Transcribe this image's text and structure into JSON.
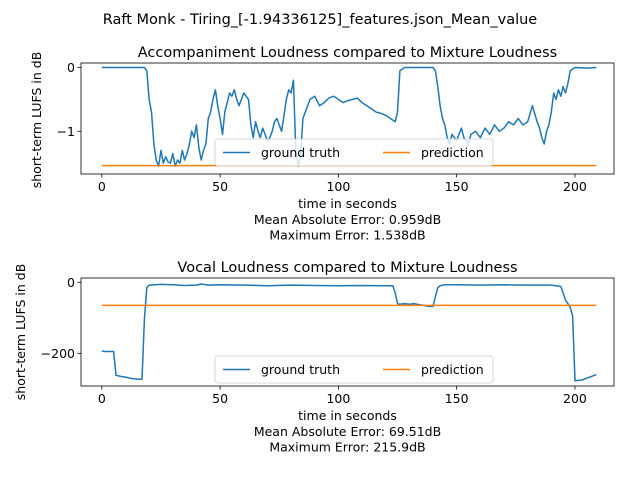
{
  "figure": {
    "suptitle": "Raft Monk - Tiring_[-1.94336125]_features.json_Mean_value"
  },
  "chart_data": [
    {
      "type": "line",
      "title": "Accompaniment Loudness compared to Mixture Loudness",
      "xlabel": "time in seconds",
      "ylabel": "short-term LUFS in dB",
      "footer": [
        "Mean Absolute Error: 0.959dB",
        "Maximum Error: 1.538dB"
      ],
      "xlim": [
        -8.8,
        216.5
      ],
      "ylim": [
        -1.67,
        0.07
      ],
      "xticks": [
        0,
        50,
        100,
        150,
        200
      ],
      "yticks": [
        0,
        -1
      ],
      "legend": {
        "placement": "bottom-center",
        "ncol": 2
      },
      "grid": false,
      "series": [
        {
          "name": "ground truth",
          "color": "#1f77b4",
          "x": [
            0,
            5,
            10,
            15,
            18,
            19,
            20,
            21,
            22,
            23,
            24,
            25,
            26,
            27,
            28,
            29,
            30,
            31,
            32,
            33,
            34,
            35,
            36,
            37,
            38,
            39,
            40,
            41,
            42,
            43,
            44,
            45,
            46,
            47,
            48,
            49,
            50,
            51,
            52,
            53,
            54,
            55,
            56,
            57,
            58,
            59,
            60,
            61,
            62,
            63,
            64,
            65,
            66,
            67,
            68,
            69,
            70,
            71,
            72,
            73,
            74,
            75,
            76,
            77,
            78,
            79,
            80,
            81,
            82,
            83,
            84,
            85,
            86,
            88,
            90,
            92,
            94,
            96,
            98,
            100,
            102,
            104,
            106,
            108,
            110,
            112,
            114,
            116,
            118,
            120,
            122,
            124,
            125,
            126,
            128,
            130,
            132,
            135,
            138,
            140,
            141,
            142,
            143,
            144,
            145,
            146,
            147,
            148,
            149,
            150,
            151,
            152,
            153,
            154,
            155,
            156,
            158,
            160,
            162,
            164,
            166,
            168,
            170,
            172,
            174,
            176,
            178,
            180,
            182,
            184,
            185,
            186,
            187,
            188,
            189,
            190,
            191,
            192,
            193,
            194,
            195,
            196,
            197,
            198,
            200,
            205,
            209
          ],
          "y": [
            0,
            0,
            0,
            0,
            0,
            -0.05,
            -0.5,
            -0.7,
            -1.2,
            -1.45,
            -1.55,
            -1.3,
            -1.5,
            -1.4,
            -1.48,
            -1.5,
            -1.35,
            -1.55,
            -1.45,
            -1.5,
            -1.3,
            -1.45,
            -1.35,
            -1.2,
            -1.0,
            -1.1,
            -0.9,
            -1.25,
            -1.45,
            -1.3,
            -1.2,
            -0.8,
            -0.7,
            -0.5,
            -0.35,
            -0.6,
            -0.8,
            -1.05,
            -0.7,
            -0.55,
            -0.4,
            -0.45,
            -0.35,
            -0.5,
            -0.6,
            -0.5,
            -0.4,
            -0.45,
            -0.5,
            -0.9,
            -1.1,
            -0.85,
            -1.0,
            -1.1,
            -0.95,
            -1.05,
            -1.15,
            -1.1,
            -1.0,
            -0.85,
            -0.8,
            -0.9,
            -1.0,
            -0.75,
            -0.5,
            -0.35,
            -0.4,
            -0.2,
            -1.3,
            -1.55,
            -1.4,
            -0.8,
            -0.7,
            -0.5,
            -0.45,
            -0.6,
            -0.55,
            -0.48,
            -0.45,
            -0.5,
            -0.55,
            -0.52,
            -0.5,
            -0.48,
            -0.55,
            -0.6,
            -0.65,
            -0.7,
            -0.72,
            -0.75,
            -0.8,
            -0.85,
            -0.7,
            -0.05,
            0,
            0,
            0,
            0,
            0,
            0,
            -0.05,
            -0.3,
            -0.6,
            -0.8,
            -0.9,
            -1.1,
            -1.2,
            -1.05,
            -1.1,
            -1.15,
            -1.05,
            -0.95,
            -1.1,
            -1.15,
            -1.2,
            -1.05,
            -1.0,
            -1.1,
            -0.95,
            -1.05,
            -0.9,
            -1.0,
            -0.95,
            -0.85,
            -0.9,
            -0.8,
            -0.9,
            -0.85,
            -0.6,
            -0.85,
            -0.95,
            -1.1,
            -1.2,
            -1.0,
            -0.9,
            -0.7,
            -0.4,
            -0.5,
            -0.35,
            -0.45,
            -0.3,
            -0.4,
            -0.25,
            -0.05,
            0,
            -0.01,
            0
          ]
        },
        {
          "name": "prediction",
          "color": "#ff7f0e",
          "x": [
            0,
            209
          ],
          "y": [
            -1.538,
            -1.538
          ]
        }
      ]
    },
    {
      "type": "line",
      "title": "Vocal Loudness compared to Mixture Loudness",
      "xlabel": "time in seconds",
      "ylabel": "short-term LUFS in dB",
      "footer": [
        "Mean Absolute Error: 69.51dB",
        "Maximum Error: 215.9dB"
      ],
      "xlim": [
        -8.8,
        216.5
      ],
      "ylim": [
        -292,
        12
      ],
      "xticks": [
        0,
        50,
        100,
        150,
        200
      ],
      "yticks": [
        0,
        -200
      ],
      "legend": {
        "placement": "bottom-center",
        "ncol": 2
      },
      "grid": false,
      "series": [
        {
          "name": "ground truth",
          "color": "#1f77b4",
          "x": [
            0,
            1,
            2,
            3,
            4,
            5,
            6,
            8,
            10,
            12,
            14,
            16,
            17,
            18,
            19,
            20,
            25,
            30,
            35,
            40,
            42,
            45,
            50,
            60,
            70,
            80,
            90,
            100,
            110,
            120,
            123,
            124,
            125,
            126,
            128,
            130,
            132,
            134,
            136,
            138,
            140,
            141,
            142,
            143,
            144,
            145,
            150,
            160,
            170,
            180,
            190,
            194,
            195,
            196,
            197,
            198,
            199,
            200,
            203,
            205,
            207,
            209
          ],
          "y": [
            -193,
            -195,
            -195,
            -195,
            -195,
            -195,
            -262,
            -265,
            -267,
            -270,
            -272,
            -273,
            -273,
            -105,
            -15,
            -8,
            -6,
            -7,
            -9,
            -8,
            -5,
            -8,
            -7,
            -8,
            -10,
            -8,
            -9,
            -10,
            -9,
            -10,
            -10,
            -30,
            -60,
            -62,
            -60,
            -62,
            -60,
            -63,
            -65,
            -68,
            -68,
            -40,
            -15,
            -10,
            -8,
            -7,
            -7,
            -8,
            -7,
            -8,
            -8,
            -12,
            -30,
            -50,
            -60,
            -70,
            -95,
            -277,
            -275,
            -270,
            -265,
            -260
          ]
        },
        {
          "name": "prediction",
          "color": "#ff7f0e",
          "x": [
            0,
            209
          ],
          "y": [
            -65,
            -65
          ]
        }
      ]
    }
  ]
}
